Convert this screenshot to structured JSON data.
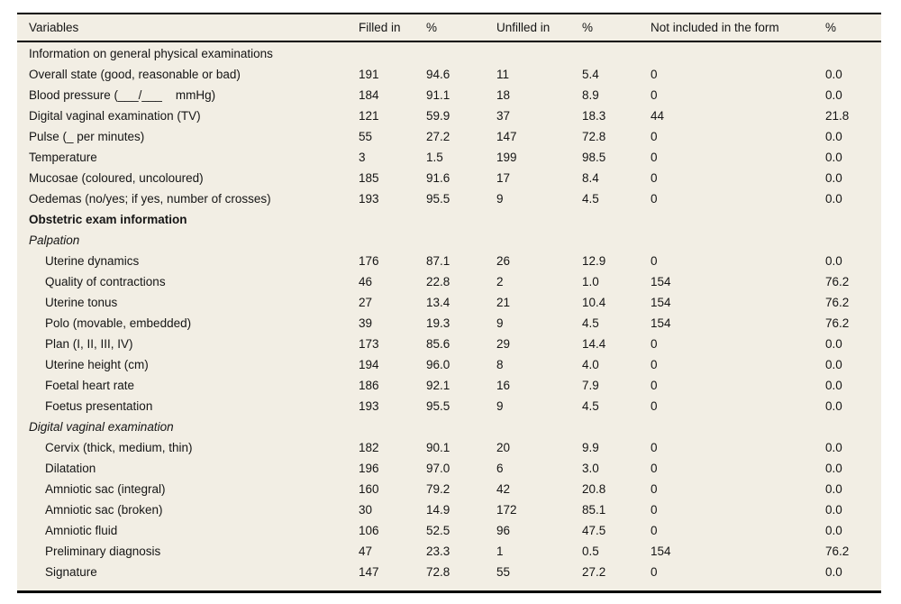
{
  "table": {
    "columns": [
      "Variables",
      "Filled in",
      "%",
      "Unfilled in",
      "%",
      "Not included in the form",
      "%"
    ],
    "rows": [
      {
        "label": "Information on general physical examinations",
        "style": "section",
        "values": []
      },
      {
        "label": "Overall state (good, reasonable or bad)",
        "style": "normal",
        "values": [
          "191",
          "94.6",
          "11",
          "5.4",
          "0",
          "0.0"
        ]
      },
      {
        "label": "Blood pressure (___/___    mmHg)",
        "style": "normal",
        "values": [
          "184",
          "91.1",
          "18",
          "8.9",
          "0",
          "0.0"
        ]
      },
      {
        "label": "Digital vaginal examination (TV)",
        "style": "normal",
        "values": [
          "121",
          "59.9",
          "37",
          "18.3",
          "44",
          "21.8"
        ]
      },
      {
        "label": "Pulse (_ per minutes)",
        "style": "normal",
        "values": [
          "55",
          "27.2",
          "147",
          "72.8",
          "0",
          "0.0"
        ]
      },
      {
        "label": "Temperature",
        "style": "normal",
        "values": [
          "3",
          "1.5",
          "199",
          "98.5",
          "0",
          "0.0"
        ]
      },
      {
        "label": "Mucosae (coloured, uncoloured)",
        "style": "normal",
        "values": [
          "185",
          "91.6",
          "17",
          "8.4",
          "0",
          "0.0"
        ]
      },
      {
        "label": "Oedemas (no/yes; if yes, number of crosses)",
        "style": "normal",
        "values": [
          "193",
          "95.5",
          "9",
          "4.5",
          "0",
          "0.0"
        ]
      },
      {
        "label": "Obstetric exam information",
        "style": "bold",
        "values": []
      },
      {
        "label": "Palpation",
        "style": "italic",
        "values": []
      },
      {
        "label": "Uterine dynamics",
        "style": "indent",
        "values": [
          "176",
          "87.1",
          "26",
          "12.9",
          "0",
          "0.0"
        ]
      },
      {
        "label": "Quality of contractions",
        "style": "indent",
        "values": [
          "46",
          "22.8",
          "2",
          "1.0",
          "154",
          "76.2"
        ]
      },
      {
        "label": "Uterine tonus",
        "style": "indent",
        "values": [
          "27",
          "13.4",
          "21",
          "10.4",
          "154",
          "76.2"
        ]
      },
      {
        "label": "Polo (movable, embedded)",
        "style": "indent",
        "values": [
          "39",
          "19.3",
          "9",
          "4.5",
          "154",
          "76.2"
        ]
      },
      {
        "label": "Plan (I, II, III, IV)",
        "style": "indent",
        "values": [
          "173",
          "85.6",
          "29",
          "14.4",
          "0",
          "0.0"
        ]
      },
      {
        "label": "Uterine height (cm)",
        "style": "indent",
        "values": [
          "194",
          "96.0",
          "8",
          "4.0",
          "0",
          "0.0"
        ]
      },
      {
        "label": "Foetal heart rate",
        "style": "indent",
        "values": [
          "186",
          "92.1",
          "16",
          "7.9",
          "0",
          "0.0"
        ]
      },
      {
        "label": "Foetus presentation",
        "style": "indent",
        "values": [
          "193",
          "95.5",
          "9",
          "4.5",
          "0",
          "0.0"
        ]
      },
      {
        "label": "Digital vaginal examination",
        "style": "italic",
        "values": []
      },
      {
        "label": "Cervix (thick, medium, thin)",
        "style": "indent",
        "values": [
          "182",
          "90.1",
          "20",
          "9.9",
          "0",
          "0.0"
        ]
      },
      {
        "label": "Dilatation",
        "style": "indent",
        "values": [
          "196",
          "97.0",
          "6",
          "3.0",
          "0",
          "0.0"
        ]
      },
      {
        "label": "Amniotic sac (integral)",
        "style": "indent",
        "values": [
          "160",
          "79.2",
          "42",
          "20.8",
          "0",
          "0.0"
        ]
      },
      {
        "label": "Amniotic sac (broken)",
        "style": "indent",
        "values": [
          "30",
          "14.9",
          "172",
          "85.1",
          "0",
          "0.0"
        ]
      },
      {
        "label": "Amniotic fluid",
        "style": "indent",
        "values": [
          "106",
          "52.5",
          "96",
          "47.5",
          "0",
          "0.0"
        ]
      },
      {
        "label": "Preliminary diagnosis",
        "style": "indent",
        "values": [
          "47",
          "23.3",
          "1",
          "0.5",
          "154",
          "76.2"
        ]
      },
      {
        "label": "Signature",
        "style": "indent",
        "values": [
          "147",
          "72.8",
          "55",
          "27.2",
          "0",
          "0.0"
        ]
      }
    ]
  }
}
